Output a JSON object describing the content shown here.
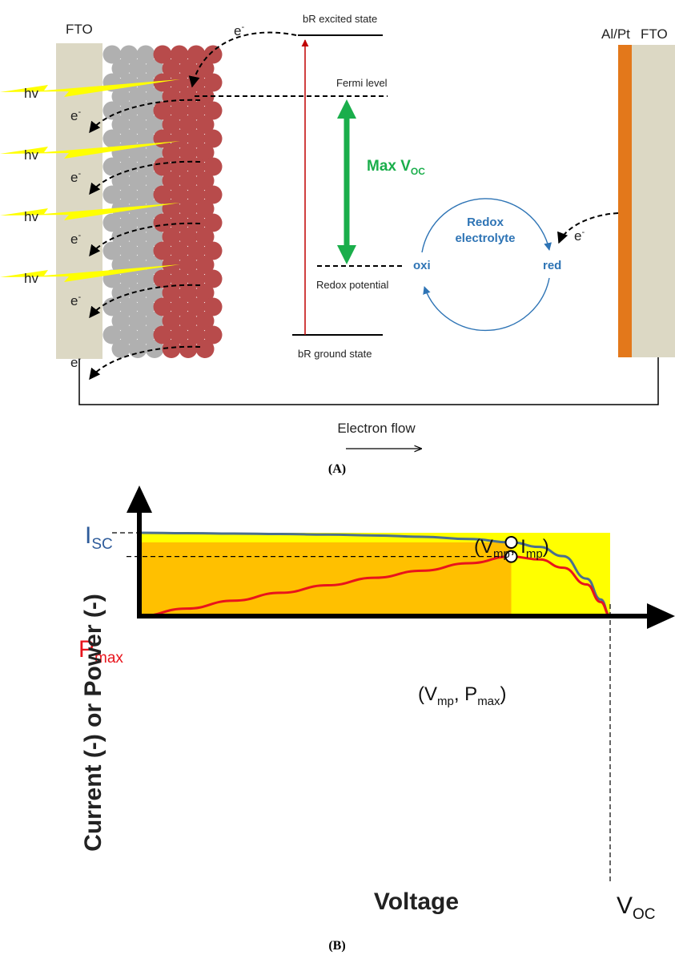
{
  "panel_a": {
    "labels": {
      "fto_left": "FTO",
      "al_pt": "Al/Pt",
      "fto_right": "FTO",
      "electron_top": "e",
      "electron_superscript": "-",
      "bR_excited": "bR excited state",
      "fermi": "Fermi level",
      "max_voc_main": "Max V",
      "max_voc_sub": "OC",
      "redox_potential": "Redox potential",
      "bR_ground": "bR ground state",
      "redox_line1": "Redox",
      "redox_line2": "electrolyte",
      "oxi": "oxi",
      "red": "red",
      "electron_flow": "Electron flow",
      "caption": "(A)"
    },
    "photon_rows": [
      {
        "hv": "hv",
        "e": "e"
      },
      {
        "hv": "hv",
        "e": "e"
      },
      {
        "hv": "hv",
        "e": "e"
      },
      {
        "hv": "hv",
        "e": "e"
      },
      {
        "hv": "",
        "e": "e"
      }
    ],
    "colors": {
      "fto": "#dcd8c4",
      "tio2": "#b0b0b0",
      "br": "#b84b4b",
      "al_pt": "#e3781b",
      "photon": "#ffff00",
      "voc_arrow": "#1aae4b",
      "redox_text": "#2e74b5",
      "excitation_line": "#c00000"
    }
  },
  "panel_b": {
    "labels": {
      "y_axis": "Current (-) or Power (-)",
      "x_axis": "Voltage",
      "isc_main": "I",
      "isc_sub": "SC",
      "pmax_main": "P",
      "pmax_sub": "max",
      "voc_main": "V",
      "voc_sub": "OC",
      "mp_current": {
        "open": "(V",
        "sub1": "mp",
        "mid": ", I",
        "sub2": "mp",
        "close": ")"
      },
      "mp_power": {
        "open": "(V",
        "sub1": "mp",
        "mid": ", P",
        "sub2": "max",
        "close": ")"
      },
      "caption": "(B)"
    },
    "colors": {
      "current_curve": "#4a6f8f",
      "power_curve": "#e8141c",
      "max_rect": "#ffc000",
      "bound_rect": "#ffff00",
      "isc_label": "#2e5b9a",
      "pmax_label": "#e8141c"
    },
    "chart_data": {
      "type": "line",
      "title": "",
      "xlabel": "Voltage",
      "ylabel": "Current (-) or Power (-)",
      "normalized": true,
      "xlim": [
        0,
        1
      ],
      "ylim": [
        0,
        1.15
      ],
      "key_points": {
        "Isc": {
          "x": 0,
          "y": 1.0
        },
        "Voc": {
          "x": 1.0,
          "y": 0
        },
        "Vmp_Imp": {
          "x": 0.79,
          "y": 0.885
        },
        "Vmp_Pmax": {
          "x": 0.79,
          "y": 0.715
        }
      },
      "series": [
        {
          "name": "Current",
          "x": [
            0,
            0.1,
            0.2,
            0.3,
            0.4,
            0.5,
            0.6,
            0.7,
            0.79,
            0.85,
            0.9,
            0.95,
            0.98,
            1.0
          ],
          "y": [
            1.0,
            0.995,
            0.99,
            0.985,
            0.978,
            0.968,
            0.952,
            0.925,
            0.885,
            0.83,
            0.72,
            0.45,
            0.2,
            0
          ]
        },
        {
          "name": "Power",
          "x": [
            0,
            0.1,
            0.2,
            0.3,
            0.4,
            0.5,
            0.6,
            0.7,
            0.79,
            0.85,
            0.9,
            0.95,
            0.98,
            1.0
          ],
          "y": [
            0,
            0.09,
            0.185,
            0.28,
            0.37,
            0.46,
            0.545,
            0.635,
            0.715,
            0.68,
            0.58,
            0.38,
            0.17,
            0
          ]
        }
      ]
    }
  }
}
